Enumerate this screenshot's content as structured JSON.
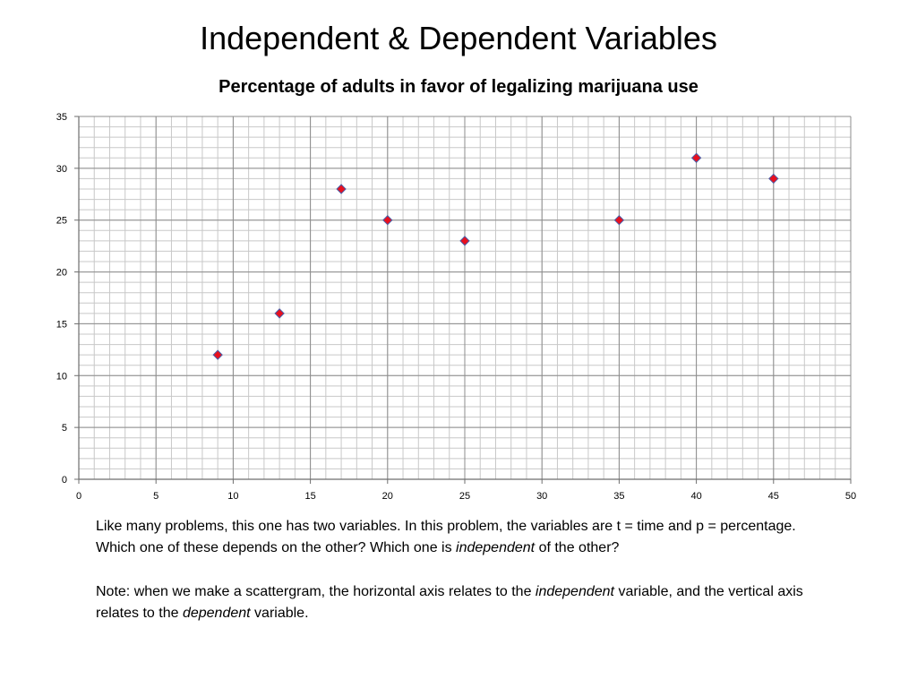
{
  "slide": {
    "title": "Independent & Dependent Variables",
    "paragraph1": {
      "before": "Like many problems, this one has two variables.  In this problem, the variables are t = time and p = percentage.  Which one of these depends on the other?  Which one is ",
      "emphasis": "independent",
      "after": " of the other?"
    },
    "paragraph2": {
      "part1": "Note: when we make a scattergram, the horizontal axis relates to the ",
      "emphasis1": "independent",
      "part2": " variable, and the vertical axis relates to the ",
      "emphasis2": "dependent",
      "part3": " variable."
    }
  },
  "chart_data": {
    "type": "scatter",
    "title": "Percentage of adults in favor of legalizing marijuana use",
    "xlabel": "",
    "ylabel": "",
    "xlim": [
      0,
      50
    ],
    "ylim": [
      0,
      35
    ],
    "xticks": [
      0,
      5,
      10,
      15,
      20,
      25,
      30,
      35,
      40,
      45,
      50
    ],
    "yticks": [
      0,
      5,
      10,
      15,
      20,
      25,
      30,
      35
    ],
    "grid": true,
    "legend": "none",
    "marker": "diamond",
    "marker_fill": "#e8101e",
    "marker_edge": "#4a5ea8",
    "points": [
      {
        "x": 9,
        "y": 12
      },
      {
        "x": 13,
        "y": 16
      },
      {
        "x": 17,
        "y": 28
      },
      {
        "x": 20,
        "y": 25
      },
      {
        "x": 25,
        "y": 23
      },
      {
        "x": 35,
        "y": 25
      },
      {
        "x": 40,
        "y": 31
      },
      {
        "x": 45,
        "y": 29
      }
    ]
  }
}
